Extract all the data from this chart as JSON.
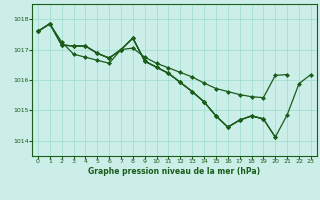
{
  "background_color": "#cceee8",
  "grid_color": "#99ddcc",
  "line_color": "#1a5c1a",
  "marker": "D",
  "marker_size": 2.0,
  "title": "Graphe pression niveau de la mer (hPa)",
  "xlim": [
    -0.5,
    23.5
  ],
  "ylim": [
    1013.5,
    1018.5
  ],
  "yticks": [
    1014,
    1015,
    1016,
    1017,
    1018
  ],
  "xticks": [
    0,
    1,
    2,
    3,
    4,
    5,
    6,
    7,
    8,
    9,
    10,
    11,
    12,
    13,
    14,
    15,
    16,
    17,
    18,
    19,
    20,
    21,
    22,
    23
  ],
  "series1_x": [
    0,
    1,
    2,
    3,
    4,
    5,
    6,
    7,
    8,
    9,
    10,
    11,
    12,
    13,
    14,
    15,
    16,
    17,
    18,
    19,
    20,
    21
  ],
  "series1_y": [
    1017.6,
    1017.85,
    1017.25,
    1016.85,
    1016.75,
    1016.65,
    1016.55,
    1017.0,
    1017.05,
    1016.75,
    1016.55,
    1016.4,
    1016.25,
    1016.1,
    1015.9,
    1015.72,
    1015.62,
    1015.52,
    1015.45,
    1015.42,
    1016.15,
    1016.18
  ],
  "series2_x": [
    0,
    1,
    2,
    3,
    4,
    5,
    6,
    7,
    8,
    9,
    10,
    11,
    12,
    13,
    14,
    15,
    16,
    17,
    18,
    19,
    20,
    21,
    22,
    23
  ],
  "series2_y": [
    1017.6,
    1017.85,
    1017.15,
    1017.12,
    1017.12,
    1016.88,
    1016.72,
    1017.0,
    1017.38,
    1016.62,
    1016.42,
    1016.22,
    1015.92,
    1015.62,
    1015.28,
    1014.82,
    1014.45,
    1014.68,
    1014.82,
    1014.72,
    1014.12,
    1014.85,
    1015.88,
    1016.18
  ],
  "series3_x": [
    0,
    1,
    2,
    3,
    4,
    5,
    6,
    7,
    8,
    9,
    10,
    11,
    12,
    13,
    14,
    15,
    16,
    17,
    18,
    19,
    20
  ],
  "series3_y": [
    1017.6,
    1017.85,
    1017.15,
    1017.12,
    1017.12,
    1016.88,
    1016.72,
    1017.0,
    1017.38,
    1016.62,
    1016.42,
    1016.22,
    1015.92,
    1015.62,
    1015.28,
    1014.82,
    1014.45,
    1014.68,
    1014.82,
    1014.72,
    1014.12
  ],
  "series4_x": [
    0,
    1,
    2,
    3,
    4,
    5,
    6,
    7,
    8,
    9,
    10,
    11,
    12,
    13,
    14,
    15,
    16,
    17,
    18,
    19
  ],
  "series4_y": [
    1017.6,
    1017.85,
    1017.15,
    1017.12,
    1017.12,
    1016.88,
    1016.72,
    1017.0,
    1017.38,
    1016.62,
    1016.42,
    1016.22,
    1015.92,
    1015.62,
    1015.28,
    1014.82,
    1014.45,
    1014.68,
    1014.82,
    1014.72
  ]
}
